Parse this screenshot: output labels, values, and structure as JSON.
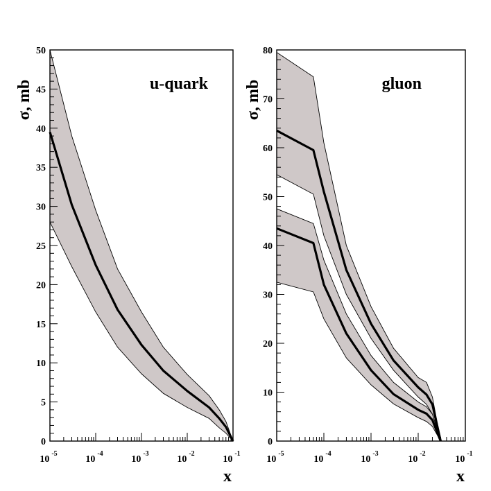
{
  "chart_data": [
    {
      "type": "area",
      "title": "u-quark",
      "xlabel": "x",
      "ylabel": "σ, mb",
      "xscale": "log",
      "xlim": [
        1e-05,
        0.1
      ],
      "ylim": [
        0,
        50
      ],
      "yticks": [
        0,
        5,
        10,
        15,
        20,
        25,
        30,
        35,
        40,
        45,
        50
      ],
      "xticks": [
        {
          "base": "10",
          "exp": "-5"
        },
        {
          "base": "10",
          "exp": "-4"
        },
        {
          "base": "10",
          "exp": "-3"
        },
        {
          "base": "10",
          "exp": "-2"
        },
        {
          "base": "10",
          "exp": "-1"
        }
      ],
      "title_position": "top-right",
      "grid": false,
      "band_color": "#cfc8c8",
      "series": [
        {
          "role": "band",
          "x": [
            1e-05,
            3e-05,
            0.0001,
            0.0003,
            0.001,
            0.003,
            0.01,
            0.03,
            0.05,
            0.07,
            0.1
          ],
          "upper": [
            50,
            39,
            29.5,
            22,
            16.5,
            12,
            8.5,
            5.8,
            4.0,
            2.5,
            0
          ],
          "lower": [
            28,
            22.3,
            16.5,
            12,
            8.6,
            6.1,
            4.3,
            2.9,
            1.7,
            1.0,
            0
          ]
        },
        {
          "role": "central",
          "x": [
            1e-05,
            3e-05,
            0.0001,
            0.0003,
            0.001,
            0.003,
            0.01,
            0.03,
            0.05,
            0.07,
            0.1
          ],
          "y": [
            39.5,
            30.2,
            22.5,
            16.8,
            12.3,
            9.0,
            6.4,
            4.3,
            2.9,
            1.8,
            0
          ]
        }
      ]
    },
    {
      "type": "area",
      "title": "gluon",
      "xlabel": "x",
      "ylabel": "σ, mb",
      "xscale": "log",
      "xlim": [
        1e-05,
        0.1
      ],
      "ylim": [
        0,
        80
      ],
      "yticks": [
        0,
        10,
        20,
        30,
        40,
        50,
        60,
        70,
        80
      ],
      "xticks": [
        {
          "base": "10",
          "exp": "-5"
        },
        {
          "base": "10",
          "exp": "-4"
        },
        {
          "base": "10",
          "exp": "-3"
        },
        {
          "base": "10",
          "exp": "-2"
        },
        {
          "base": "10",
          "exp": "-1"
        }
      ],
      "title_position": "top-right",
      "grid": false,
      "band_color": "#cfc8c8",
      "series": [
        {
          "role": "band",
          "x": [
            1e-05,
            6e-05,
            0.0001,
            0.0003,
            0.001,
            0.003,
            0.01,
            0.015,
            0.02,
            0.03
          ],
          "upper": [
            79.5,
            74.5,
            61,
            40,
            27.5,
            19,
            13,
            12,
            9,
            0
          ],
          "lower": [
            54.5,
            50.5,
            42,
            30,
            21,
            14.5,
            9.0,
            7.5,
            5.5,
            0
          ]
        },
        {
          "role": "central",
          "x": [
            1e-05,
            6e-05,
            0.0001,
            0.0003,
            0.001,
            0.003,
            0.01,
            0.015,
            0.02,
            0.03
          ],
          "y": [
            63.5,
            59.5,
            51,
            35,
            24,
            16.5,
            11.0,
            9.5,
            7.5,
            0
          ]
        },
        {
          "role": "band",
          "x": [
            1e-05,
            6e-05,
            0.0001,
            0.0003,
            0.001,
            0.003,
            0.01,
            0.015,
            0.02,
            0.03
          ],
          "upper": [
            47.5,
            44.5,
            37,
            26,
            17.5,
            12,
            8.0,
            7.0,
            5.5,
            0
          ],
          "lower": [
            32.5,
            30.5,
            25,
            17,
            11.5,
            7.6,
            4.8,
            4.0,
            3.0,
            0
          ]
        },
        {
          "role": "central",
          "x": [
            1e-05,
            6e-05,
            0.0001,
            0.0003,
            0.001,
            0.003,
            0.01,
            0.015,
            0.02,
            0.03
          ],
          "y": [
            43.5,
            40.5,
            32,
            22,
            14.5,
            9.6,
            6.4,
            5.6,
            4.3,
            0
          ]
        }
      ]
    }
  ]
}
